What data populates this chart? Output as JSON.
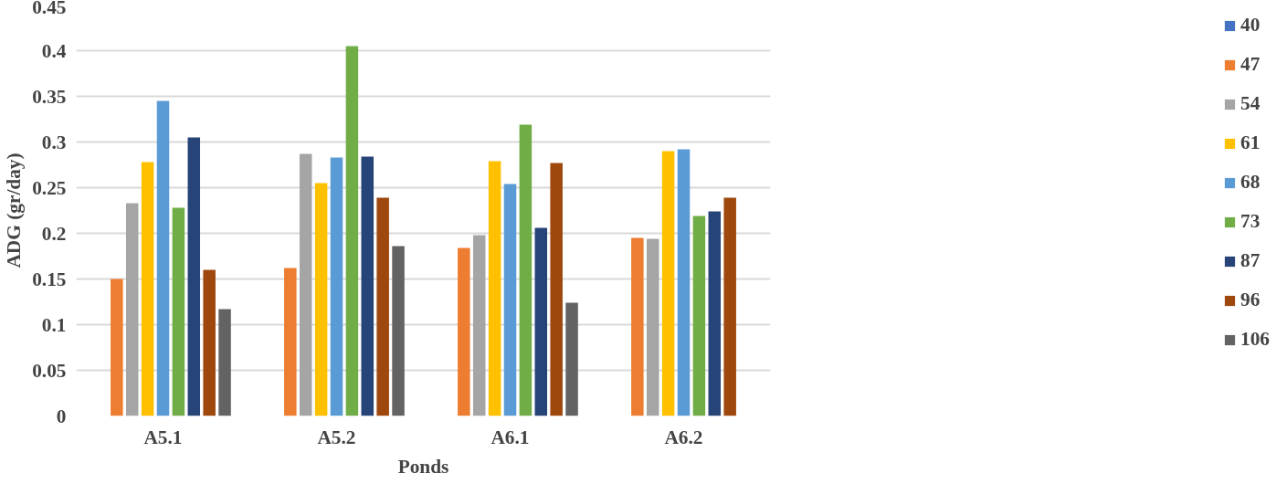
{
  "chart_data": {
    "type": "bar",
    "xlabel": "Ponds",
    "ylabel": "ADG (gr/day)",
    "categories": [
      "A5.1",
      "A5.2",
      "A6.1",
      "A6.2"
    ],
    "series": [
      {
        "name": "40",
        "color": "#4472c4",
        "values": [
          null,
          null,
          null,
          null
        ]
      },
      {
        "name": "47",
        "color": "#ed7d31",
        "values": [
          0.15,
          0.162,
          0.184,
          0.195
        ]
      },
      {
        "name": "54",
        "color": "#a5a5a5",
        "values": [
          0.233,
          0.287,
          0.198,
          0.194
        ]
      },
      {
        "name": "61",
        "color": "#ffc000",
        "values": [
          0.278,
          0.255,
          0.279,
          0.29
        ]
      },
      {
        "name": "68",
        "color": "#5b9bd5",
        "values": [
          0.345,
          0.283,
          0.254,
          0.292
        ]
      },
      {
        "name": "73",
        "color": "#70ad47",
        "values": [
          0.228,
          0.405,
          0.319,
          0.219
        ]
      },
      {
        "name": "87",
        "color": "#264478",
        "values": [
          0.305,
          0.284,
          0.206,
          0.224
        ]
      },
      {
        "name": "96",
        "color": "#9e480e",
        "values": [
          0.16,
          0.239,
          0.277,
          0.239
        ]
      },
      {
        "name": "106",
        "color": "#636363",
        "values": [
          0.117,
          0.186,
          0.124,
          null
        ]
      }
    ],
    "ylim": [
      0,
      0.45
    ],
    "yticks": [
      0,
      0.05,
      0.1,
      0.15,
      0.2,
      0.25,
      0.3,
      0.35,
      0.4,
      0.45
    ],
    "grid": "y",
    "legend": "right"
  }
}
